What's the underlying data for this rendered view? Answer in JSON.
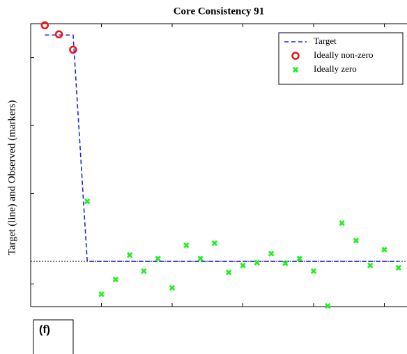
{
  "chart_data": {
    "type": "scatter",
    "title": "Core Consistency 91",
    "ylabel": "Target (line) and Observed (markers)",
    "panel_label": "(f)",
    "xlim": [
      0,
      26.6
    ],
    "ylim": [
      -0.2,
      1.05
    ],
    "xticks": [
      5,
      10,
      15,
      20,
      25
    ],
    "yticks": [
      -0.1,
      0.3,
      0.6,
      0.9
    ],
    "zero_line": true,
    "legend": "upper right",
    "series": [
      {
        "name": "Target",
        "style": "dashed-line",
        "color": "#1f1fe6",
        "x": [
          1,
          2,
          3,
          4,
          5,
          6,
          7,
          8,
          9,
          10,
          11,
          12,
          13,
          14,
          15,
          16,
          17,
          18,
          19,
          20,
          21,
          22,
          23,
          24,
          25,
          26
        ],
        "values": [
          1,
          1,
          1,
          0,
          0,
          0,
          0,
          0,
          0,
          0,
          0,
          0,
          0,
          0,
          0,
          0,
          0,
          0,
          0,
          0,
          0,
          0,
          0,
          0,
          0,
          0
        ]
      },
      {
        "name": "Ideally non-zero",
        "style": "circle",
        "color": "#ee1111",
        "x": [
          1,
          2,
          3
        ],
        "values": [
          1.043,
          1.003,
          0.935
        ]
      },
      {
        "name": "Ideally zero",
        "style": "cross",
        "color": "#22ee22",
        "x": [
          4,
          5,
          6,
          7,
          8,
          9,
          10,
          11,
          12,
          13,
          14,
          15,
          16,
          17,
          18,
          19,
          20,
          21,
          22,
          23,
          24,
          25,
          26
        ],
        "values": [
          0.265,
          -0.145,
          -0.08,
          0.028,
          -0.043,
          0.012,
          -0.117,
          0.071,
          0.012,
          0.08,
          -0.049,
          -0.018,
          -0.006,
          0.034,
          -0.009,
          0.012,
          -0.043,
          -0.197,
          0.169,
          0.092,
          -0.018,
          0.052,
          -0.028
        ]
      }
    ]
  }
}
